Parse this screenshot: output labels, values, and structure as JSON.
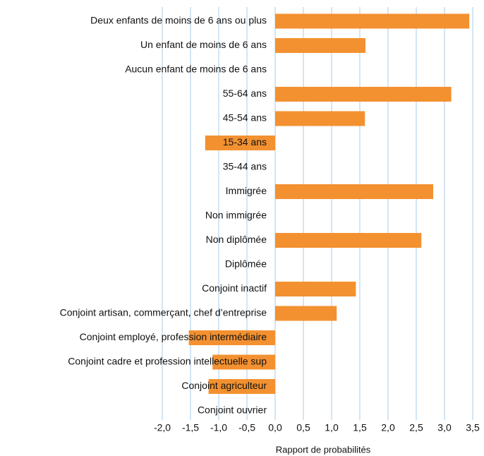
{
  "chart_data": {
    "type": "barh",
    "xlabel": "Rapport de probabilités",
    "categories": [
      "Deux enfants de moins de 6 ans ou plus",
      "Un enfant de moins de 6 ans",
      "Aucun enfant de moins de 6 ans",
      "55-64 ans",
      "45-54 ans",
      "15-34 ans",
      "35-44 ans",
      "Immigrée",
      "Non immigrée",
      "Non diplômée",
      "Diplômée",
      "Conjoint inactif",
      "Conjoint artisan, commerçant, chef d’entreprise",
      "Conjoint employé, profession intermédiaire",
      "Conjoint cadre et profession intellectuelle sup",
      "Conjoint agriculteur",
      "Conjoint ouvrier"
    ],
    "values": [
      3.44,
      1.6,
      0,
      3.12,
      1.59,
      -1.24,
      0,
      2.8,
      0,
      2.59,
      0,
      1.43,
      1.09,
      -1.53,
      -1.11,
      -1.18,
      0
    ],
    "color": "#f39130",
    "grid_color": "#a9cbe8",
    "xlim": [
      -2,
      3.5
    ],
    "xticks": [
      {
        "value": -2,
        "label": "-2,0"
      },
      {
        "value": -1.5,
        "label": "-1,5"
      },
      {
        "value": -1,
        "label": "-1,0"
      },
      {
        "value": -0.5,
        "label": "-0,5"
      },
      {
        "value": 0,
        "label": "0,0"
      },
      {
        "value": 0.5,
        "label": "0,5"
      },
      {
        "value": 1,
        "label": "1,0"
      },
      {
        "value": 1.5,
        "label": "1,5"
      },
      {
        "value": 2,
        "label": "2,0"
      },
      {
        "value": 2.5,
        "label": "2,5"
      },
      {
        "value": 3,
        "label": "3,0"
      },
      {
        "value": 3.5,
        "label": "3,5"
      }
    ],
    "grid": true
  }
}
